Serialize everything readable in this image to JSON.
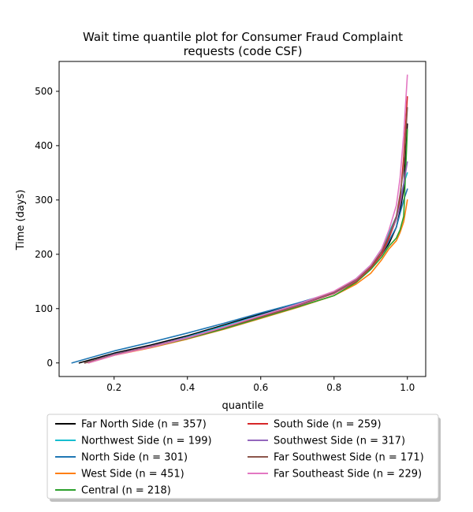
{
  "chart_data": {
    "type": "line",
    "title_line1": "Wait time quantile plot for Consumer Fraud Complaint",
    "title_line2": "requests (code CSF)",
    "xlabel": "quantile",
    "ylabel": "Time (days)",
    "xlim": [
      0.05,
      1.05
    ],
    "ylim": [
      -25,
      555
    ],
    "x_ticks": [
      0.2,
      0.4,
      0.6,
      0.8,
      1.0
    ],
    "x_tick_labels": [
      "0.2",
      "0.4",
      "0.6",
      "0.8",
      "1.0"
    ],
    "y_ticks": [
      0,
      100,
      200,
      300,
      400,
      500
    ],
    "y_tick_labels": [
      "0",
      "100",
      "200",
      "300",
      "400",
      "500"
    ],
    "legend_position": "bottom-center",
    "legend_columns": 2,
    "series": [
      {
        "name": "Far North Side (n = 357)",
        "color": "#000000",
        "x": [
          0.105,
          0.2,
          0.3,
          0.4,
          0.5,
          0.6,
          0.7,
          0.8,
          0.86,
          0.9,
          0.93,
          0.95,
          0.97,
          0.98,
          0.99,
          1.0
        ],
        "y": [
          0,
          18,
          33,
          50,
          70,
          90,
          108,
          128,
          152,
          175,
          200,
          220,
          250,
          280,
          320,
          440
        ]
      },
      {
        "name": "Northwest Side (n = 199)",
        "color": "#17becf",
        "x": [
          0.12,
          0.2,
          0.3,
          0.4,
          0.5,
          0.6,
          0.7,
          0.8,
          0.86,
          0.9,
          0.93,
          0.95,
          0.97,
          0.98,
          0.99,
          1.0
        ],
        "y": [
          0,
          16,
          30,
          48,
          68,
          88,
          108,
          130,
          155,
          180,
          210,
          240,
          270,
          300,
          330,
          350
        ]
      },
      {
        "name": "North Side (n = 301)",
        "color": "#1f77b4",
        "x": [
          0.085,
          0.2,
          0.3,
          0.4,
          0.5,
          0.6,
          0.7,
          0.8,
          0.86,
          0.9,
          0.93,
          0.95,
          0.97,
          0.98,
          0.99,
          1.0
        ],
        "y": [
          0,
          22,
          38,
          55,
          73,
          92,
          110,
          130,
          152,
          175,
          200,
          225,
          250,
          275,
          300,
          320
        ]
      },
      {
        "name": "West Side (n = 451)",
        "color": "#ff7f0e",
        "x": [
          0.13,
          0.2,
          0.3,
          0.4,
          0.5,
          0.6,
          0.7,
          0.8,
          0.86,
          0.9,
          0.93,
          0.95,
          0.97,
          0.98,
          0.99,
          1.0
        ],
        "y": [
          0,
          14,
          28,
          44,
          62,
          82,
          102,
          124,
          145,
          165,
          190,
          210,
          225,
          240,
          260,
          300
        ]
      },
      {
        "name": "Central (n = 218)",
        "color": "#2ca02c",
        "x": [
          0.12,
          0.2,
          0.3,
          0.4,
          0.5,
          0.6,
          0.7,
          0.8,
          0.86,
          0.9,
          0.93,
          0.95,
          0.97,
          0.98,
          0.99,
          1.0
        ],
        "y": [
          0,
          15,
          29,
          45,
          63,
          83,
          103,
          124,
          148,
          172,
          195,
          215,
          230,
          245,
          270,
          430
        ]
      },
      {
        "name": "South Side (n = 259)",
        "color": "#d62728",
        "x": [
          0.12,
          0.2,
          0.3,
          0.4,
          0.5,
          0.6,
          0.7,
          0.8,
          0.86,
          0.9,
          0.93,
          0.95,
          0.97,
          0.98,
          0.99,
          1.0
        ],
        "y": [
          0,
          15,
          30,
          46,
          65,
          85,
          105,
          128,
          150,
          175,
          200,
          230,
          265,
          300,
          380,
          490
        ]
      },
      {
        "name": "Southwest Side (n = 317)",
        "color": "#9467bd",
        "x": [
          0.12,
          0.2,
          0.3,
          0.4,
          0.5,
          0.6,
          0.7,
          0.8,
          0.86,
          0.9,
          0.93,
          0.95,
          0.97,
          0.98,
          0.99,
          1.0
        ],
        "y": [
          0,
          16,
          31,
          47,
          66,
          86,
          106,
          129,
          152,
          177,
          205,
          235,
          265,
          290,
          330,
          370
        ]
      },
      {
        "name": "Far Southwest Side (n = 171)",
        "color": "#8c564b",
        "x": [
          0.12,
          0.2,
          0.3,
          0.4,
          0.5,
          0.6,
          0.7,
          0.8,
          0.86,
          0.9,
          0.93,
          0.95,
          0.97,
          0.98,
          0.99,
          1.0
        ],
        "y": [
          0,
          15,
          30,
          46,
          65,
          86,
          107,
          130,
          153,
          177,
          205,
          235,
          270,
          310,
          360,
          470
        ]
      },
      {
        "name": "Far Southeast Side (n = 229)",
        "color": "#e377c2",
        "x": [
          0.13,
          0.2,
          0.3,
          0.4,
          0.5,
          0.6,
          0.7,
          0.8,
          0.86,
          0.9,
          0.93,
          0.95,
          0.97,
          0.98,
          0.99,
          1.0
        ],
        "y": [
          0,
          14,
          29,
          46,
          66,
          87,
          108,
          132,
          155,
          180,
          210,
          245,
          290,
          340,
          420,
          530
        ]
      }
    ]
  }
}
